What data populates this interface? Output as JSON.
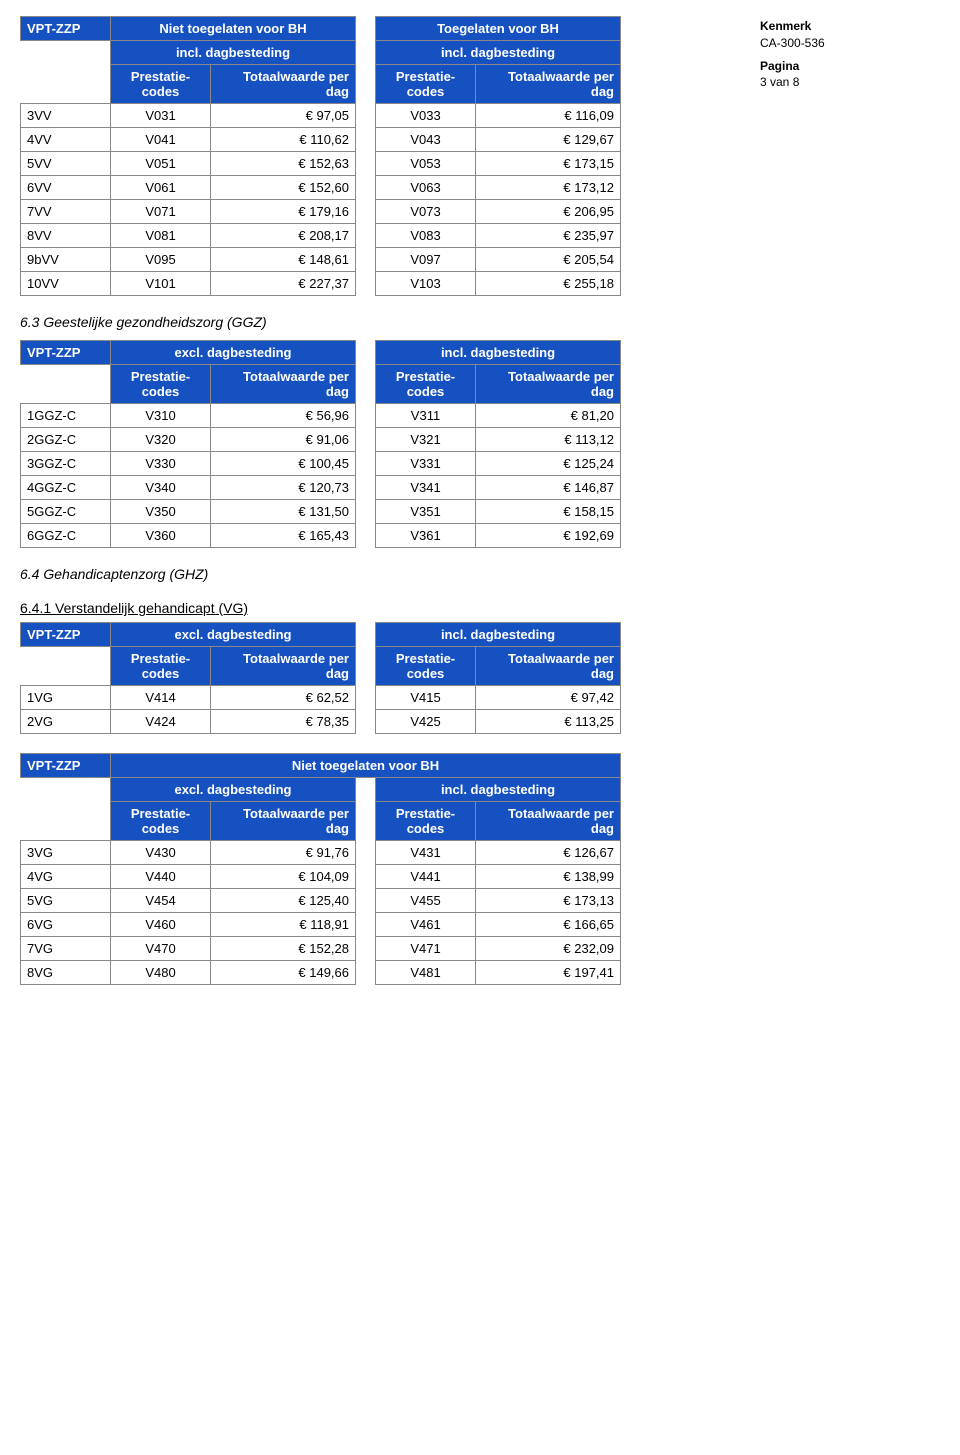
{
  "meta": {
    "kenmerk_label": "Kenmerk",
    "kenmerk_value": "CA-300-536",
    "pagina_label": "Pagina",
    "pagina_value": "3 van 8"
  },
  "labels": {
    "vpt_zzp": "VPT-ZZP",
    "niet_toegelaten": "Niet toegelaten voor BH",
    "toegelaten": "Toegelaten voor BH",
    "excl_dag": "excl. dagbesteding",
    "incl_dag": "incl. dagbesteding",
    "prestatie_codes": "Prestatie-codes",
    "totaalwaarde": "Totaalwaarde per dag"
  },
  "sections": {
    "s63": "6.3 Geestelijke gezondheidszorg (GGZ)",
    "s64": "6.4 Gehandicaptenzorg (GHZ)",
    "s641": "6.4.1 Verstandelijk gehandicapt (VG)"
  },
  "table1": {
    "left_header": "incl_dag",
    "right_header": "incl_dag",
    "super_left": "niet_toegelaten",
    "super_right": "toegelaten",
    "rows": [
      {
        "label": "3VV",
        "c1": "V031",
        "v1": "€ 97,05",
        "c2": "V033",
        "v2": "€ 116,09"
      },
      {
        "label": "4VV",
        "c1": "V041",
        "v1": "€ 110,62",
        "c2": "V043",
        "v2": "€ 129,67"
      },
      {
        "label": "5VV",
        "c1": "V051",
        "v1": "€ 152,63",
        "c2": "V053",
        "v2": "€ 173,15"
      },
      {
        "label": "6VV",
        "c1": "V061",
        "v1": "€ 152,60",
        "c2": "V063",
        "v2": "€ 173,12"
      },
      {
        "label": "7VV",
        "c1": "V071",
        "v1": "€ 179,16",
        "c2": "V073",
        "v2": "€ 206,95"
      },
      {
        "label": "8VV",
        "c1": "V081",
        "v1": "€ 208,17",
        "c2": "V083",
        "v2": "€ 235,97"
      },
      {
        "label": "9bVV",
        "c1": "V095",
        "v1": "€ 148,61",
        "c2": "V097",
        "v2": "€ 205,54"
      },
      {
        "label": "10VV",
        "c1": "V101",
        "v1": "€ 227,37",
        "c2": "V103",
        "v2": "€ 255,18"
      }
    ]
  },
  "table2": {
    "left_header": "excl_dag",
    "right_header": "incl_dag",
    "rows": [
      {
        "label": "1GGZ-C",
        "c1": "V310",
        "v1": "€ 56,96",
        "c2": "V311",
        "v2": "€ 81,20"
      },
      {
        "label": "2GGZ-C",
        "c1": "V320",
        "v1": "€ 91,06",
        "c2": "V321",
        "v2": "€ 113,12"
      },
      {
        "label": "3GGZ-C",
        "c1": "V330",
        "v1": "€ 100,45",
        "c2": "V331",
        "v2": "€ 125,24"
      },
      {
        "label": "4GGZ-C",
        "c1": "V340",
        "v1": "€ 120,73",
        "c2": "V341",
        "v2": "€ 146,87"
      },
      {
        "label": "5GGZ-C",
        "c1": "V350",
        "v1": "€ 131,50",
        "c2": "V351",
        "v2": "€ 158,15"
      },
      {
        "label": "6GGZ-C",
        "c1": "V360",
        "v1": "€ 165,43",
        "c2": "V361",
        "v2": "€ 192,69"
      }
    ]
  },
  "table3": {
    "left_header": "excl_dag",
    "right_header": "incl_dag",
    "rows": [
      {
        "label": "1VG",
        "c1": "V414",
        "v1": "€ 62,52",
        "c2": "V415",
        "v2": "€ 97,42"
      },
      {
        "label": "2VG",
        "c1": "V424",
        "v1": "€ 78,35",
        "c2": "V425",
        "v2": "€ 113,25"
      }
    ]
  },
  "table4": {
    "super": "niet_toegelaten",
    "left_header": "excl_dag",
    "right_header": "incl_dag",
    "rows": [
      {
        "label": "3VG",
        "c1": "V430",
        "v1": "€ 91,76",
        "c2": "V431",
        "v2": "€ 126,67"
      },
      {
        "label": "4VG",
        "c1": "V440",
        "v1": "€ 104,09",
        "c2": "V441",
        "v2": "€ 138,99"
      },
      {
        "label": "5VG",
        "c1": "V454",
        "v1": "€ 125,40",
        "c2": "V455",
        "v2": "€ 173,13"
      },
      {
        "label": "6VG",
        "c1": "V460",
        "v1": "€ 118,91",
        "c2": "V461",
        "v2": "€ 166,65"
      },
      {
        "label": "7VG",
        "c1": "V470",
        "v1": "€ 152,28",
        "c2": "V471",
        "v2": "€ 232,09"
      },
      {
        "label": "8VG",
        "c1": "V480",
        "v1": "€ 149,66",
        "c2": "V481",
        "v2": "€ 197,41"
      }
    ]
  },
  "colors": {
    "header_bg": "#1651c1",
    "header_fg": "#ffffff",
    "border": "#888888",
    "page_bg": "#ffffff"
  }
}
